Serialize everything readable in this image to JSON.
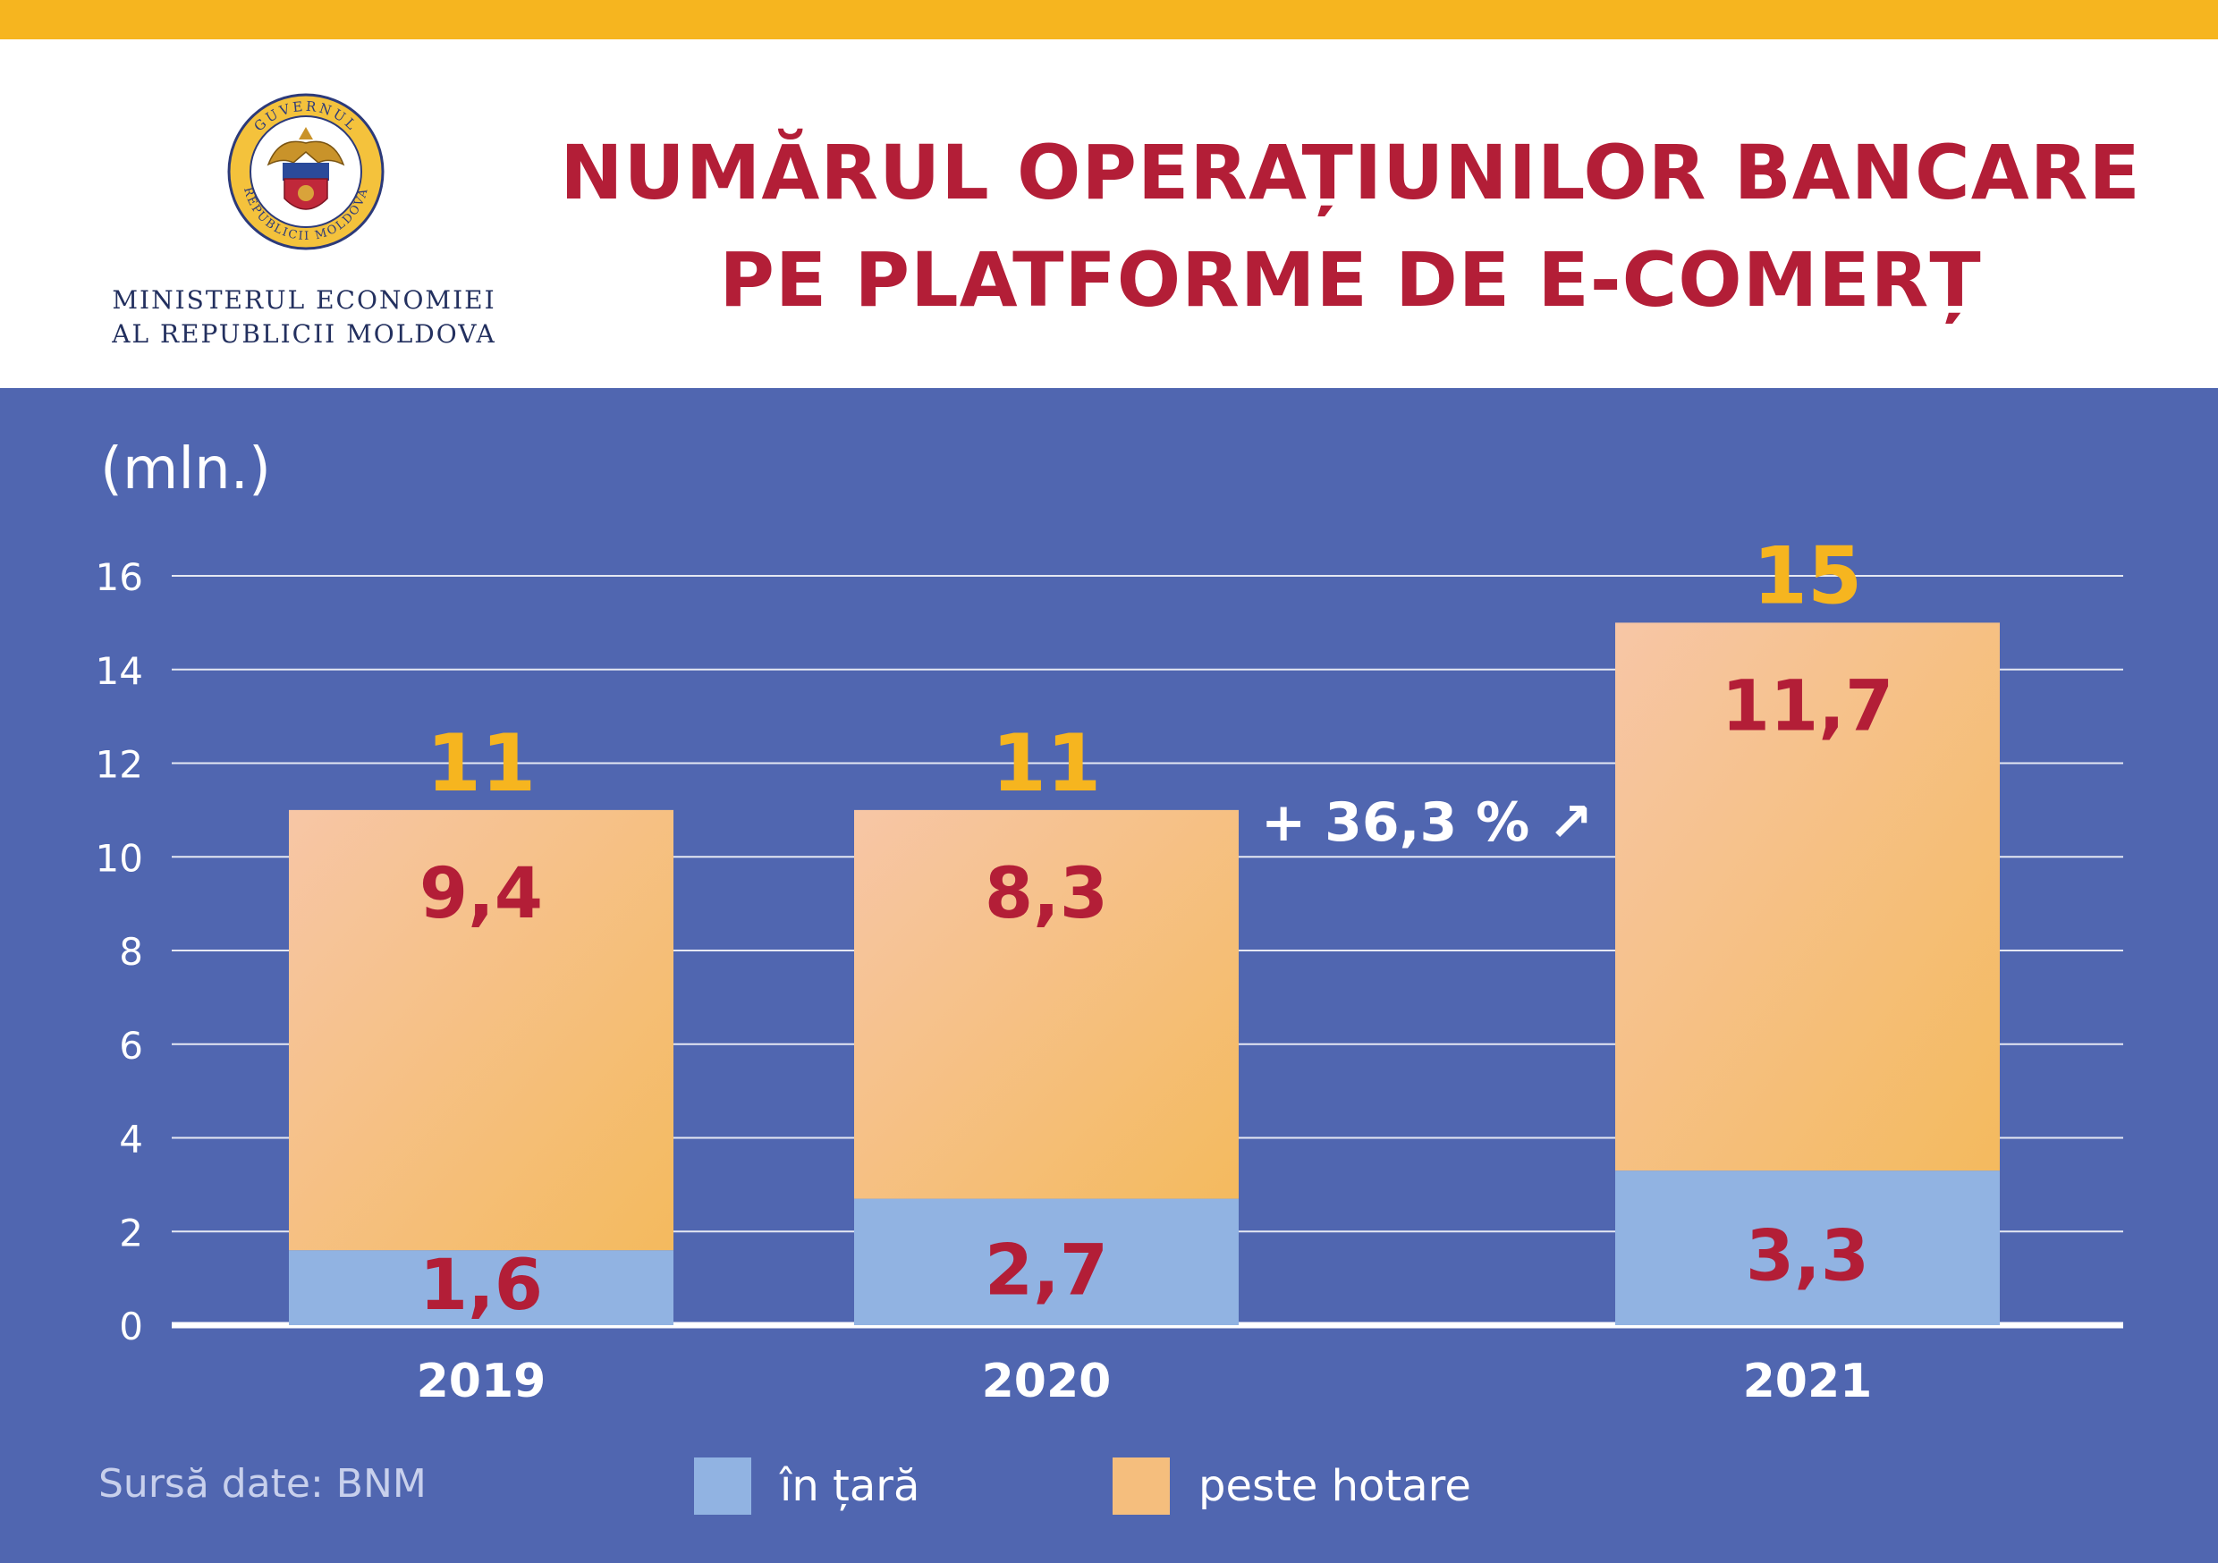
{
  "header": {
    "title_line1": "NUMĂRUL OPERAȚIUNILOR BANCARE",
    "title_line2": "PE PLATFORME DE E-COMERȚ",
    "ministry_line1": "MINISTERUL ECONOMIEI",
    "ministry_line2": "AL REPUBLICII MOLDOVA",
    "seal_text_top": "GUVERNUL",
    "seal_text_bottom": "REPUBLICII MOLDOVA"
  },
  "colors": {
    "stripe": "#f6b51f",
    "title": "#b31e37",
    "panel": "#5066b0",
    "domestic": "#91b3e2",
    "abroad": "#f5be7d",
    "value_label": "#b31e37",
    "total_label": "#f6b51f"
  },
  "chart_data": {
    "type": "bar",
    "stacked": true,
    "unit_label": "(mln.)",
    "categories": [
      "2019",
      "2020",
      "2021"
    ],
    "series": [
      {
        "name": "în țară",
        "values": [
          1.6,
          2.7,
          3.3
        ],
        "labels": [
          "1,6",
          "2,7",
          "3,3"
        ],
        "color": "#91b3e2"
      },
      {
        "name": "peste hotare",
        "values": [
          9.4,
          8.3,
          11.7
        ],
        "labels": [
          "9,4",
          "8,3",
          "11,7"
        ],
        "color": "#f5be7d"
      }
    ],
    "totals": [
      "11",
      "11",
      "15"
    ],
    "annotation": "+ 36,3 % ↗",
    "yticks": [
      "0",
      "2",
      "4",
      "6",
      "8",
      "10",
      "12",
      "14",
      "16"
    ],
    "ylim": [
      0,
      16
    ],
    "grid": true,
    "legend_position": "bottom"
  },
  "footer": {
    "source": "Sursă date: BNM",
    "legend_domestic": "în țară",
    "legend_abroad": "peste hotare"
  }
}
